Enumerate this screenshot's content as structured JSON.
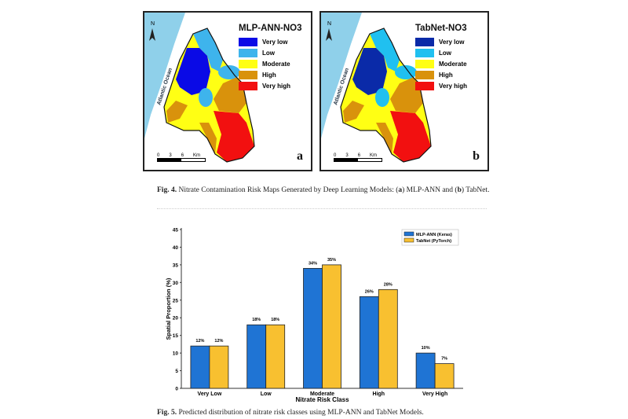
{
  "maps": [
    {
      "title": "MLP-ANN-NO3",
      "panel": "a",
      "colors": [
        "#0a0ae6",
        "#3eb4ec",
        "#ffff14",
        "#d9920c",
        "#f21010"
      ]
    },
    {
      "title": "TabNet-NO3",
      "panel": "b",
      "colors": [
        "#0a2aa8",
        "#20c0f0",
        "#ffff14",
        "#d9920c",
        "#f21010"
      ]
    }
  ],
  "legend_labels": [
    "Very low",
    "Low",
    "Moderate",
    "High",
    "Very high"
  ],
  "ocean_label": "Atlantic Ocean",
  "north": "N",
  "scale": {
    "ticks": [
      "0",
      "3",
      "6"
    ],
    "unit": "Km"
  },
  "fig4": {
    "label": "Fig. 4.",
    "text": " Nitrate Contamination Risk Maps Generated by Deep Learning Models: (",
    "a": "a",
    "mid": ") MLP-ANN and (",
    "b": "b",
    "end": ") TabNet."
  },
  "fig5": {
    "label": "Fig. 5.",
    "text": " Predicted distribution of nitrate risk classes using MLP-ANN and TabNet Models."
  },
  "chart_data": {
    "type": "bar",
    "categories": [
      "Very Low",
      "Low",
      "Moderate",
      "High",
      "Very High"
    ],
    "series": [
      {
        "name": "MLP-ANN (Keras)",
        "values": [
          12,
          18,
          34,
          26,
          10
        ],
        "color": "#1f74d4",
        "labels": [
          "12%",
          "18%",
          "34%",
          "26%",
          "10%"
        ]
      },
      {
        "name": "TabNet (PyTorch)",
        "values": [
          12,
          18,
          35,
          28,
          7
        ],
        "color": "#f8c030",
        "labels": [
          "12%",
          "18%",
          "35%",
          "28%",
          "7%"
        ]
      }
    ],
    "xlabel": "Nitrate Risk Class",
    "ylabel": "Spatial Proportion (%)",
    "ylim": [
      0,
      45
    ],
    "yticks": [
      0,
      5,
      10,
      15,
      20,
      25,
      30,
      35,
      40,
      45
    ],
    "legend": "top-right"
  }
}
